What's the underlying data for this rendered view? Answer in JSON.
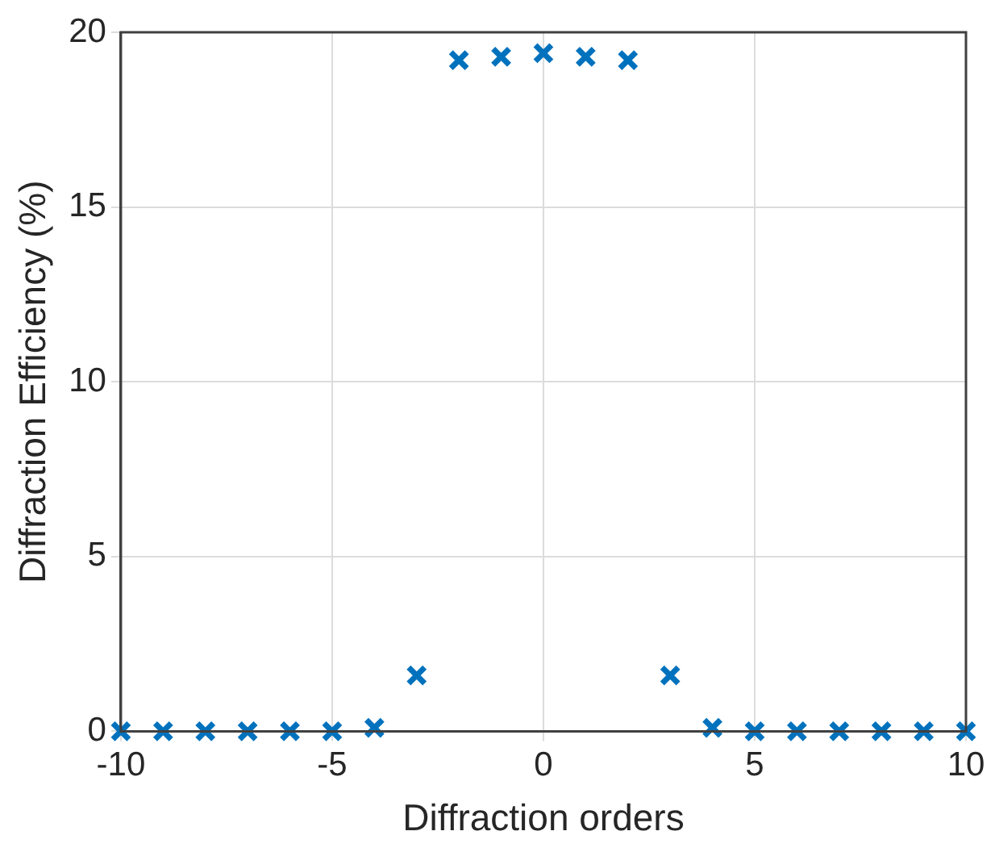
{
  "chart_data": {
    "type": "scatter",
    "xlabel": "Diffraction orders",
    "ylabel": "Diffraction Efficiency (%)",
    "x": [
      -10,
      -9,
      -8,
      -7,
      -6,
      -5,
      -4,
      -3,
      -2,
      -1,
      0,
      1,
      2,
      3,
      4,
      5,
      6,
      7,
      8,
      9,
      10
    ],
    "series": [
      {
        "color": "#0072bd",
        "values": [
          0,
          0,
          0,
          0,
          0,
          0,
          0.1,
          1.6,
          19.2,
          19.3,
          19.4,
          19.3,
          19.2,
          1.6,
          0.1,
          0,
          0,
          0,
          0,
          0,
          0
        ]
      }
    ],
    "xlim": [
      -10,
      10
    ],
    "xticks": [
      -10,
      -5,
      0,
      5,
      10
    ],
    "ylim": [
      0,
      20
    ],
    "yticks": [
      0,
      5,
      10,
      15,
      20
    ],
    "grid": true,
    "marker": "cross",
    "legend": false
  }
}
